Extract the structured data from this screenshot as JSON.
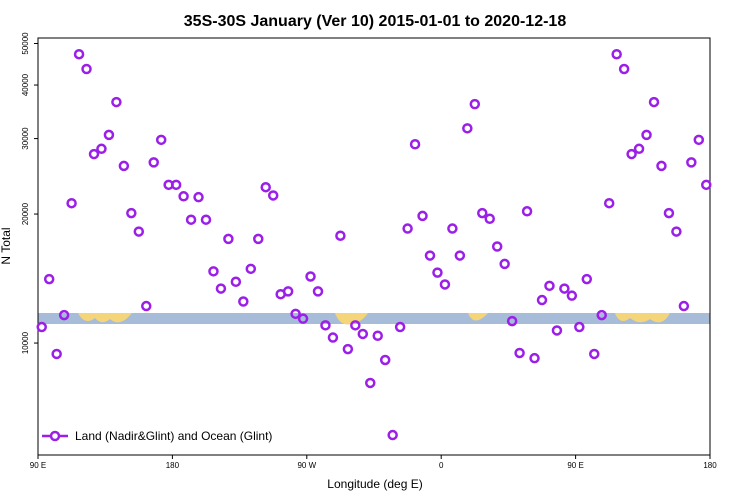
{
  "chart_data": {
    "type": "scatter",
    "title": "35S-30S January (Ver 10)   2015-01-01 to 2020-12-18",
    "x_label": "Longitude (deg E)",
    "y_label": "N Total",
    "log_y": true,
    "legend": "bottom-left",
    "xlim": [
      90,
      540
    ],
    "ylim": [
      5480,
      51500
    ],
    "xticks": [
      {
        "value": 90,
        "label": "90 E"
      },
      180,
      {
        "value": 270,
        "label": "90 W"
      },
      {
        "value": 360,
        "label": "0"
      },
      {
        "value": 450,
        "label": "90 E"
      },
      {
        "value": 540,
        "label": "180"
      }
    ],
    "yticks": [
      10000,
      20000,
      30000,
      40000,
      50000
    ],
    "series": [
      {
        "name": "Land (Nadir&Glint) and Ocean (Glint)",
        "color": "#9b1fe8",
        "x": [
          92.5,
          97.5,
          102.5,
          107.5,
          112.5,
          117.5,
          122.5,
          127.5,
          132.5,
          137.5,
          142.5,
          147.5,
          152.5,
          157.5,
          162.5,
          167.5,
          172.5,
          177.5,
          182.5,
          187.5,
          192.5,
          197.5,
          202.5,
          207.5,
          212.5,
          217.5,
          222.5,
          227.5,
          232.5,
          237.5,
          242.5,
          247.5,
          252.5,
          257.5,
          262.5,
          267.5,
          272.5,
          277.5,
          282.5,
          287.5,
          292.5,
          297.5,
          302.5,
          307.5,
          312.5,
          317.5,
          322.5,
          327.5,
          332.5,
          337.5,
          342.5,
          347.5,
          352.5,
          357.5,
          362.5,
          367.5,
          372.5,
          377.5,
          382.5,
          387.5,
          392.5,
          397.5,
          402.5,
          407.5,
          412.5,
          417.5,
          422.5,
          427.5,
          432.5,
          437.5,
          442.5,
          447.5,
          452.5,
          457.5,
          462.5,
          467.5,
          472.5,
          477.5,
          482.5,
          487.5,
          492.5,
          497.5,
          502.5,
          507.5,
          512.5,
          517.5,
          522.5,
          527.5,
          532.5,
          537.5
        ],
        "values": [
          10900,
          14100,
          9430,
          11620,
          21200,
          47200,
          43600,
          27600,
          28400,
          30600,
          36500,
          25900,
          20100,
          18200,
          12200,
          26400,
          29800,
          23400,
          23400,
          22000,
          19400,
          21900,
          19400,
          14700,
          13400,
          17500,
          13900,
          12500,
          14900,
          17500,
          23100,
          22100,
          13000,
          13200,
          11700,
          11400,
          14300,
          13200,
          11000,
          10300,
          17800,
          9680,
          11000,
          10500,
          8070,
          10400,
          9130,
          6100,
          10900,
          18500,
          29100,
          19800,
          16000,
          14600,
          13700,
          18500,
          16000,
          31700,
          36100,
          20100,
          19500,
          16800,
          15300,
          11250,
          9480,
          20300,
          9220,
          12600,
          13600,
          10700,
          13400,
          12900,
          10900,
          14100,
          9430,
          11620,
          21200,
          47200,
          43600,
          27600,
          28400,
          30600,
          36500,
          25900,
          20100,
          18200,
          12200,
          26400,
          29800,
          23400
        ]
      }
    ]
  }
}
